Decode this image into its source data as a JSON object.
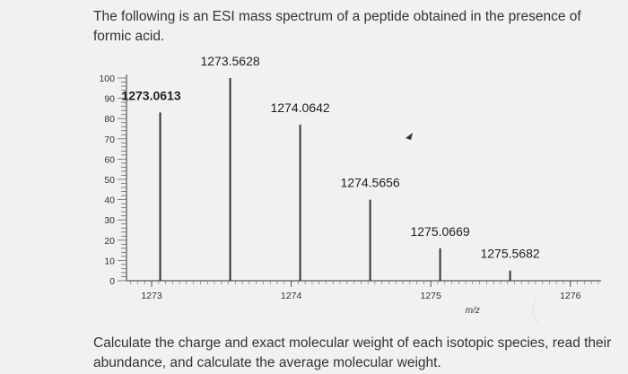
{
  "question": {
    "intro": "The following is an ESI mass spectrum of a peptide obtained in the presence of formic acid.",
    "task": "Calculate the charge and exact molecular weight of each isotopic species, read their abundance, and calculate the average molecular weight."
  },
  "chart_data": {
    "type": "bar",
    "title": "",
    "xlabel": "m/z",
    "ylabel": "",
    "xlim": [
      1272.82,
      1276.22
    ],
    "ylim": [
      0,
      100
    ],
    "yticks": [
      0,
      10,
      20,
      30,
      40,
      50,
      60,
      70,
      80,
      90,
      100
    ],
    "xticks": [
      1273,
      1274,
      1275,
      1276
    ],
    "grid": false,
    "peaks": [
      {
        "x": 1273.0613,
        "y": 83,
        "label": "1273.0613",
        "label_color": "#b0202a"
      },
      {
        "x": 1273.5628,
        "y": 100,
        "label": "1273.5628",
        "label_color": "#222222"
      },
      {
        "x": 1274.0642,
        "y": 77,
        "label": "1274.0642",
        "label_color": "#222222"
      },
      {
        "x": 1274.5656,
        "y": 40,
        "label": "1274.5656",
        "label_color": "#222222"
      },
      {
        "x": 1275.0669,
        "y": 16,
        "label": "1275.0669",
        "label_color": "#222222"
      },
      {
        "x": 1275.5682,
        "y": 5,
        "label": "1275.5682",
        "label_color": "#222222"
      }
    ]
  }
}
